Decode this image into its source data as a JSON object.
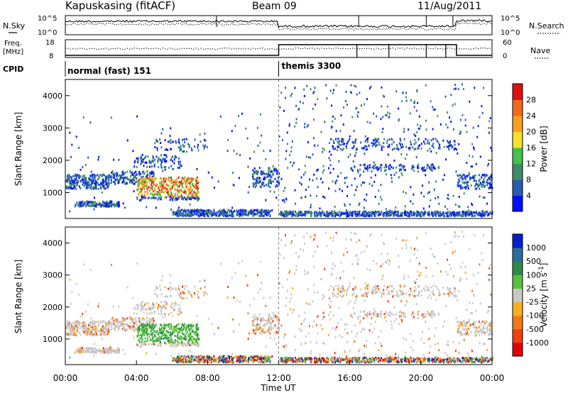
{
  "header": {
    "station": "Kapuskasing (fitACF)",
    "beam": "Beam 09",
    "date": "11/Aug/2011"
  },
  "left_labels": {
    "nsky": "N.Sky",
    "freq_line1": "Freq.",
    "freq_line2": "[MHz]",
    "cpid": "CPID"
  },
  "right_labels": {
    "nsearch": "N.Search",
    "nave": "Nave"
  },
  "cpid_modes": [
    {
      "label": "normal (fast) 151",
      "start_hour": 0
    },
    {
      "label": "themis 3300",
      "start_hour": 12
    }
  ],
  "chart_data": [
    {
      "type": "line",
      "name": "noise",
      "y_ticks_left": [
        "10^5",
        "10^0"
      ],
      "y_ticks_right": [
        "10^5",
        "10^0"
      ]
    },
    {
      "type": "line",
      "name": "frequency-nave",
      "y_ticks_left": [
        "18",
        "8"
      ],
      "y_ticks_right": [
        "60",
        "0"
      ],
      "frequency_mhz_steps": [
        {
          "from_hour": 0,
          "to_hour": 12,
          "value": 10
        },
        {
          "from_hour": 12,
          "to_hour": 22,
          "value": 16
        },
        {
          "from_hour": 22,
          "to_hour": 24,
          "value": 10
        }
      ]
    },
    {
      "type": "heatmap",
      "name": "power",
      "ylabel": "Slant Range [km]",
      "y_ticks": [
        "1000",
        "2000",
        "3000",
        "4000"
      ],
      "ylim": [
        200,
        4500
      ],
      "xlim_hours": [
        0,
        24
      ],
      "colorbar_label": "Power [dB]",
      "colorbar_ticks": [
        "4",
        "8",
        "12",
        "16",
        "20",
        "24",
        "28"
      ],
      "colorbar_colors": [
        "#0010ff",
        "#2a5ab0",
        "#3c8c6c",
        "#44c24a",
        "#f2e32a",
        "#f7a020",
        "#f06a1a",
        "#e01010"
      ]
    },
    {
      "type": "heatmap",
      "name": "velocity",
      "ylabel": "Slant Range [km]",
      "y_ticks": [
        "1000",
        "2000",
        "3000",
        "4000"
      ],
      "ylim": [
        200,
        4500
      ],
      "xlim_hours": [
        0,
        24
      ],
      "colorbar_label": "Velocity [m s^-1]",
      "colorbar_ticks": [
        "1000",
        "500",
        "100",
        "25",
        "-25",
        "-100",
        "-500",
        "-1000"
      ],
      "colorbar_colors": [
        "#0020d0",
        "#2a6e9a",
        "#2e8a4a",
        "#58c040",
        "#c8c8c8",
        "#f5b020",
        "#f07a18",
        "#f04010",
        "#e00000"
      ],
      "xlabel": "Time UT",
      "x_ticks": [
        "00:00",
        "04:00",
        "08:00",
        "12:00",
        "16:00",
        "20:00",
        "00:00"
      ]
    }
  ]
}
